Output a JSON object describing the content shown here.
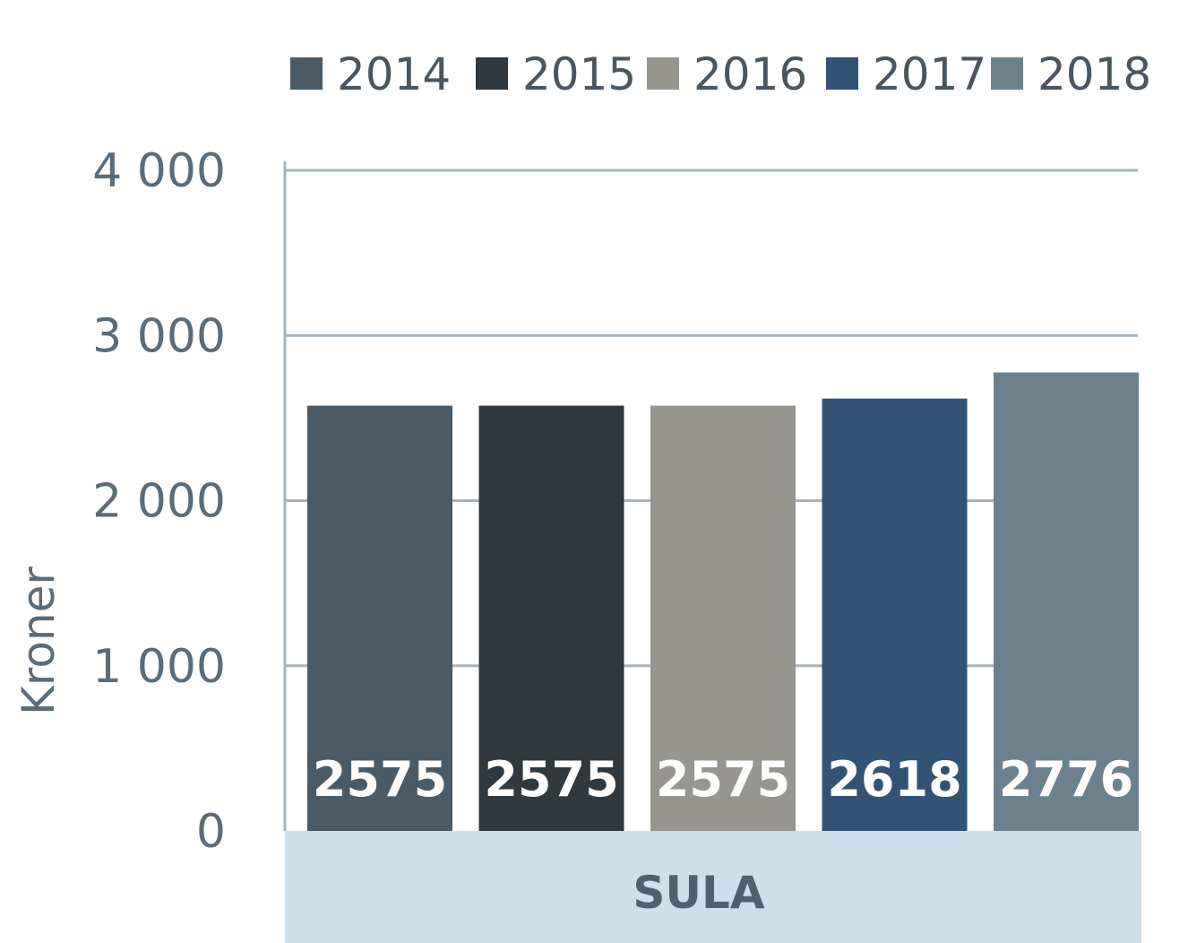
{
  "chart_data": {
    "type": "bar",
    "categories": [
      "SULA"
    ],
    "series": [
      {
        "name": "2014",
        "values": [
          2575
        ],
        "color": "#4a5b67"
      },
      {
        "name": "2015",
        "values": [
          2575
        ],
        "color": "#2f393f"
      },
      {
        "name": "2016",
        "values": [
          2575
        ],
        "color": "#969590"
      },
      {
        "name": "2017",
        "values": [
          2618
        ],
        "color": "#335375"
      },
      {
        "name": "2018",
        "values": [
          2776
        ],
        "color": "#6c818e"
      }
    ],
    "ylabel": "Kroner",
    "ylim": [
      0,
      4000
    ],
    "yticks": [
      0,
      1000,
      2000,
      3000,
      4000
    ],
    "ytick_labels": [
      "0",
      "1 000",
      "2 000",
      "3 000",
      "4 000"
    ],
    "legend_position": "top",
    "grid": true,
    "category_band_color": "#cbdfed",
    "grid_color": "#a6b3bd"
  }
}
